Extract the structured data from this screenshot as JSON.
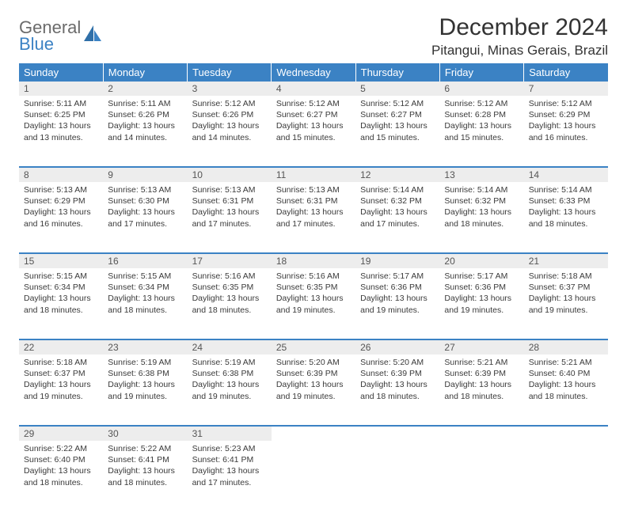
{
  "brand": {
    "line1": "General",
    "line2": "Blue"
  },
  "title": "December 2024",
  "location": "Pitangui, Minas Gerais, Brazil",
  "colors": {
    "header_bg": "#3b82c4",
    "header_text": "#ffffff",
    "daynum_bg": "#ededed",
    "rule": "#3b82c4",
    "text": "#3a3a3a"
  },
  "dayNames": [
    "Sunday",
    "Monday",
    "Tuesday",
    "Wednesday",
    "Thursday",
    "Friday",
    "Saturday"
  ],
  "weeks": [
    [
      {
        "n": "1",
        "sr": "5:11 AM",
        "ss": "6:25 PM",
        "dl": "13 hours and 13 minutes."
      },
      {
        "n": "2",
        "sr": "5:11 AM",
        "ss": "6:26 PM",
        "dl": "13 hours and 14 minutes."
      },
      {
        "n": "3",
        "sr": "5:12 AM",
        "ss": "6:26 PM",
        "dl": "13 hours and 14 minutes."
      },
      {
        "n": "4",
        "sr": "5:12 AM",
        "ss": "6:27 PM",
        "dl": "13 hours and 15 minutes."
      },
      {
        "n": "5",
        "sr": "5:12 AM",
        "ss": "6:27 PM",
        "dl": "13 hours and 15 minutes."
      },
      {
        "n": "6",
        "sr": "5:12 AM",
        "ss": "6:28 PM",
        "dl": "13 hours and 15 minutes."
      },
      {
        "n": "7",
        "sr": "5:12 AM",
        "ss": "6:29 PM",
        "dl": "13 hours and 16 minutes."
      }
    ],
    [
      {
        "n": "8",
        "sr": "5:13 AM",
        "ss": "6:29 PM",
        "dl": "13 hours and 16 minutes."
      },
      {
        "n": "9",
        "sr": "5:13 AM",
        "ss": "6:30 PM",
        "dl": "13 hours and 17 minutes."
      },
      {
        "n": "10",
        "sr": "5:13 AM",
        "ss": "6:31 PM",
        "dl": "13 hours and 17 minutes."
      },
      {
        "n": "11",
        "sr": "5:13 AM",
        "ss": "6:31 PM",
        "dl": "13 hours and 17 minutes."
      },
      {
        "n": "12",
        "sr": "5:14 AM",
        "ss": "6:32 PM",
        "dl": "13 hours and 17 minutes."
      },
      {
        "n": "13",
        "sr": "5:14 AM",
        "ss": "6:32 PM",
        "dl": "13 hours and 18 minutes."
      },
      {
        "n": "14",
        "sr": "5:14 AM",
        "ss": "6:33 PM",
        "dl": "13 hours and 18 minutes."
      }
    ],
    [
      {
        "n": "15",
        "sr": "5:15 AM",
        "ss": "6:34 PM",
        "dl": "13 hours and 18 minutes."
      },
      {
        "n": "16",
        "sr": "5:15 AM",
        "ss": "6:34 PM",
        "dl": "13 hours and 18 minutes."
      },
      {
        "n": "17",
        "sr": "5:16 AM",
        "ss": "6:35 PM",
        "dl": "13 hours and 18 minutes."
      },
      {
        "n": "18",
        "sr": "5:16 AM",
        "ss": "6:35 PM",
        "dl": "13 hours and 19 minutes."
      },
      {
        "n": "19",
        "sr": "5:17 AM",
        "ss": "6:36 PM",
        "dl": "13 hours and 19 minutes."
      },
      {
        "n": "20",
        "sr": "5:17 AM",
        "ss": "6:36 PM",
        "dl": "13 hours and 19 minutes."
      },
      {
        "n": "21",
        "sr": "5:18 AM",
        "ss": "6:37 PM",
        "dl": "13 hours and 19 minutes."
      }
    ],
    [
      {
        "n": "22",
        "sr": "5:18 AM",
        "ss": "6:37 PM",
        "dl": "13 hours and 19 minutes."
      },
      {
        "n": "23",
        "sr": "5:19 AM",
        "ss": "6:38 PM",
        "dl": "13 hours and 19 minutes."
      },
      {
        "n": "24",
        "sr": "5:19 AM",
        "ss": "6:38 PM",
        "dl": "13 hours and 19 minutes."
      },
      {
        "n": "25",
        "sr": "5:20 AM",
        "ss": "6:39 PM",
        "dl": "13 hours and 19 minutes."
      },
      {
        "n": "26",
        "sr": "5:20 AM",
        "ss": "6:39 PM",
        "dl": "13 hours and 18 minutes."
      },
      {
        "n": "27",
        "sr": "5:21 AM",
        "ss": "6:39 PM",
        "dl": "13 hours and 18 minutes."
      },
      {
        "n": "28",
        "sr": "5:21 AM",
        "ss": "6:40 PM",
        "dl": "13 hours and 18 minutes."
      }
    ],
    [
      {
        "n": "29",
        "sr": "5:22 AM",
        "ss": "6:40 PM",
        "dl": "13 hours and 18 minutes."
      },
      {
        "n": "30",
        "sr": "5:22 AM",
        "ss": "6:41 PM",
        "dl": "13 hours and 18 minutes."
      },
      {
        "n": "31",
        "sr": "5:23 AM",
        "ss": "6:41 PM",
        "dl": "13 hours and 17 minutes."
      },
      null,
      null,
      null,
      null
    ]
  ],
  "labels": {
    "sunrise": "Sunrise:",
    "sunset": "Sunset:",
    "daylight": "Daylight:"
  }
}
